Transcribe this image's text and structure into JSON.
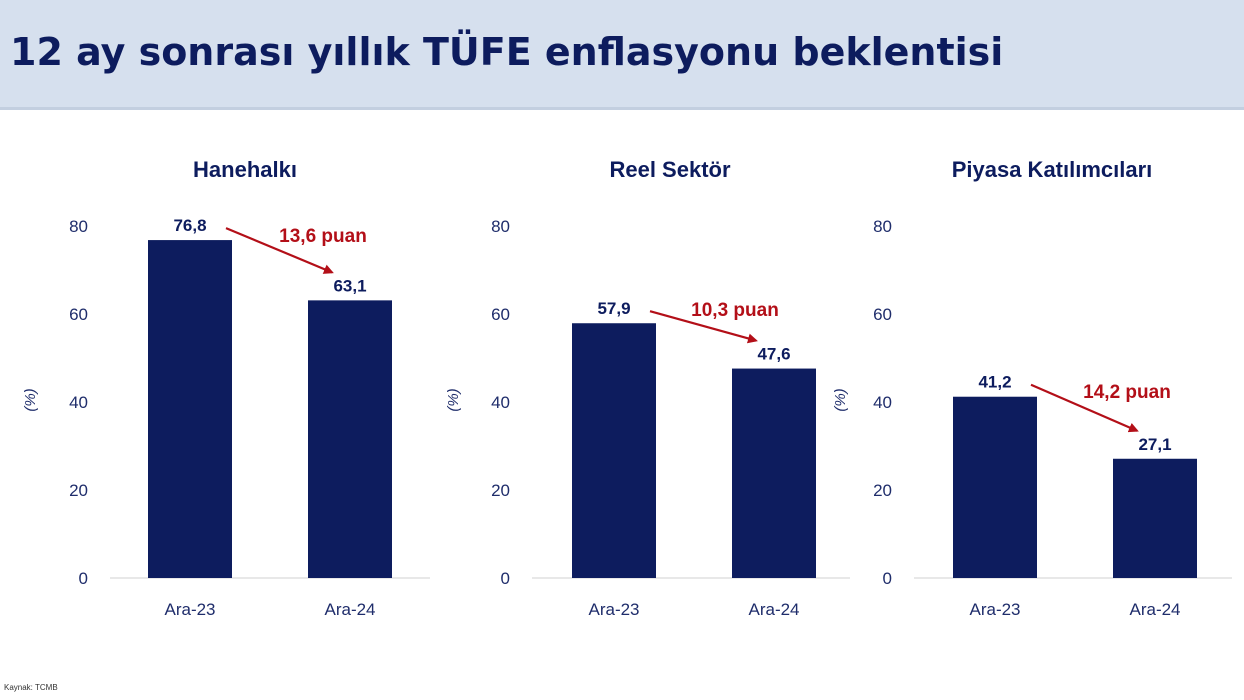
{
  "page_title": "12 ay sonrası yıllık TÜFE enflasyonu beklentisi",
  "source": "Kaynak: TCMB",
  "colors": {
    "bar": "#0d1c5e",
    "arrow": "#b30f18",
    "axis_text": "#1f2d6b",
    "header_bg": "#d6e0ee"
  },
  "chart_data": [
    {
      "type": "bar",
      "title": "Hanehalkı",
      "ylabel": "(%)",
      "categories": [
        "Ara-23",
        "Ara-24"
      ],
      "values": [
        76.8,
        63.1
      ],
      "value_labels": [
        "76,8",
        "63,1"
      ],
      "ylim": [
        0,
        80
      ],
      "yticks": [
        0,
        20,
        40,
        60,
        80
      ],
      "annotation": "13,6 puan"
    },
    {
      "type": "bar",
      "title": "Reel Sektör",
      "ylabel": "(%)",
      "categories": [
        "Ara-23",
        "Ara-24"
      ],
      "values": [
        57.9,
        47.6
      ],
      "value_labels": [
        "57,9",
        "47,6"
      ],
      "ylim": [
        0,
        80
      ],
      "yticks": [
        0,
        20,
        40,
        60,
        80
      ],
      "annotation": "10,3 puan"
    },
    {
      "type": "bar",
      "title": "Piyasa Katılımcıları",
      "ylabel": "(%)",
      "categories": [
        "Ara-23",
        "Ara-24"
      ],
      "values": [
        41.2,
        27.1
      ],
      "value_labels": [
        "41,2",
        "27,1"
      ],
      "ylim": [
        0,
        80
      ],
      "yticks": [
        0,
        20,
        40,
        60,
        80
      ],
      "annotation": "14,2 puan"
    }
  ]
}
